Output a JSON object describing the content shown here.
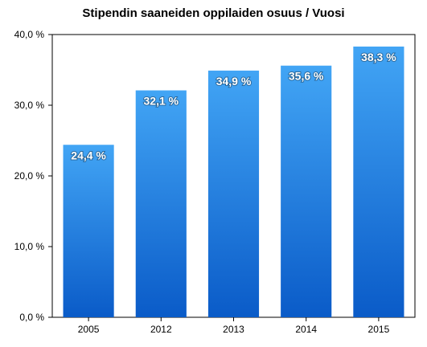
{
  "chart_data": {
    "type": "bar",
    "title": "Stipendin saaneiden oppilaiden osuus / Vuosi",
    "xlabel": "",
    "ylabel": "",
    "categories": [
      "2005",
      "2012",
      "2013",
      "2014",
      "2015"
    ],
    "values": [
      24.4,
      32.1,
      34.9,
      35.6,
      38.3
    ],
    "data_labels": [
      "24,4 %",
      "32,1 %",
      "34,9 %",
      "35,6 %",
      "38,3 %"
    ],
    "ylim": [
      0,
      40
    ],
    "y_ticks": [
      0,
      10,
      20,
      30,
      40
    ],
    "y_tick_labels": [
      "0,0 %",
      "10,0 %",
      "20,0 %",
      "30,0 %",
      "40,0 %"
    ],
    "grid": false,
    "legend": "none",
    "colors": {
      "bar_top": "#42a5f5",
      "bar_bottom": "#0a5bc8"
    }
  }
}
